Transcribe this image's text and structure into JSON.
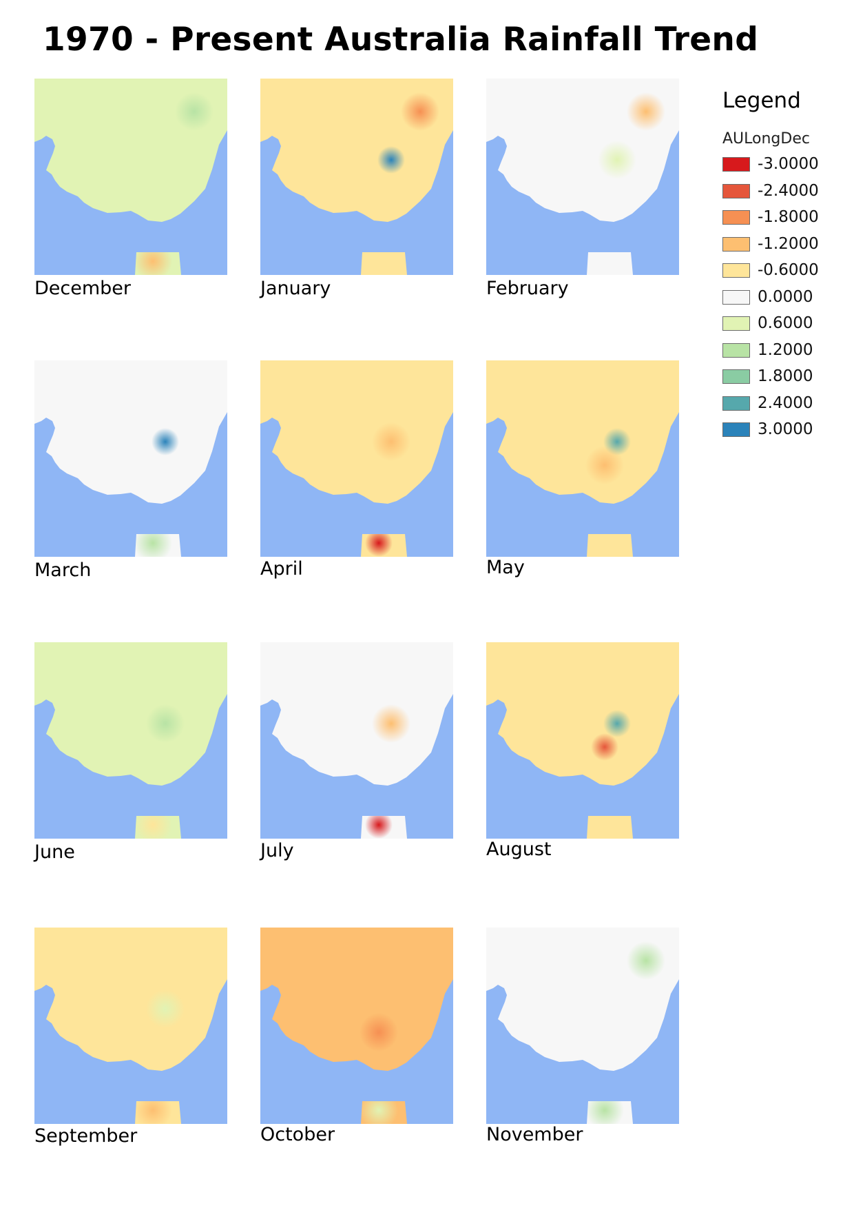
{
  "title": "1970 - Present Australia Rainfall Trend",
  "legend": {
    "heading": "Legend",
    "layer": "AULongDec",
    "classes": [
      {
        "label": "-3.0000",
        "color": "#d7191c"
      },
      {
        "label": "-2.4000",
        "color": "#e5563b"
      },
      {
        "label": "-1.8000",
        "color": "#f69053"
      },
      {
        "label": "-1.2000",
        "color": "#fdbf71"
      },
      {
        "label": "-0.6000",
        "color": "#fee59a"
      },
      {
        "label": "0.0000",
        "color": "#f7f7f7"
      },
      {
        "label": "0.6000",
        "color": "#e1f3b4"
      },
      {
        "label": "1.2000",
        "color": "#b8e3a5"
      },
      {
        "label": "1.8000",
        "color": "#8acca3"
      },
      {
        "label": "2.4000",
        "color": "#56a8ac"
      },
      {
        "label": "3.0000",
        "color": "#2b83ba"
      }
    ]
  },
  "colors": {
    "ocean": "#8fb6f5"
  },
  "months": [
    {
      "name": "December",
      "base": 0.45,
      "hotspots": [
        {
          "v": 0.9,
          "at": "north-east"
        },
        {
          "v": -1.2,
          "at": "tasmania"
        }
      ]
    },
    {
      "name": "January",
      "base": -0.7,
      "hotspots": [
        {
          "v": 3.0,
          "at": "central-nsw"
        },
        {
          "v": -1.6,
          "at": "north-east"
        }
      ]
    },
    {
      "name": "February",
      "base": 0.0,
      "hotspots": [
        {
          "v": -1.2,
          "at": "north-east"
        },
        {
          "v": 0.5,
          "at": "central-nsw"
        }
      ]
    },
    {
      "name": "March",
      "base": 0.15,
      "hotspots": [
        {
          "v": 3.0,
          "at": "central-nsw"
        },
        {
          "v": 1.1,
          "at": "tasmania"
        }
      ]
    },
    {
      "name": "April",
      "base": -0.75,
      "hotspots": [
        {
          "v": -2.8,
          "at": "tasmania"
        },
        {
          "v": -1.0,
          "at": "central-nsw"
        }
      ]
    },
    {
      "name": "May",
      "base": -0.45,
      "hotspots": [
        {
          "v": 2.4,
          "at": "central-nsw"
        },
        {
          "v": -1.3,
          "at": "southern-nsw"
        }
      ]
    },
    {
      "name": "June",
      "base": 0.6,
      "hotspots": [
        {
          "v": 1.2,
          "at": "central-nsw"
        },
        {
          "v": -0.6,
          "at": "tasmania"
        }
      ]
    },
    {
      "name": "July",
      "base": 0.05,
      "hotspots": [
        {
          "v": -3.0,
          "at": "tasmania"
        },
        {
          "v": -1.0,
          "at": "central-nsw"
        }
      ]
    },
    {
      "name": "August",
      "base": -0.85,
      "hotspots": [
        {
          "v": 2.4,
          "at": "central-nsw"
        },
        {
          "v": -2.4,
          "at": "southern-nsw"
        }
      ]
    },
    {
      "name": "September",
      "base": -0.6,
      "hotspots": [
        {
          "v": 0.8,
          "at": "central-nsw"
        },
        {
          "v": -1.0,
          "at": "tasmania"
        }
      ]
    },
    {
      "name": "October",
      "base": -0.9,
      "hotspots": [
        {
          "v": -1.6,
          "at": "southern-nsw"
        },
        {
          "v": 0.6,
          "at": "tasmania"
        }
      ]
    },
    {
      "name": "November",
      "base": 0.1,
      "hotspots": [
        {
          "v": 0.9,
          "at": "north-east"
        },
        {
          "v": 1.0,
          "at": "tasmania"
        }
      ]
    }
  ]
}
